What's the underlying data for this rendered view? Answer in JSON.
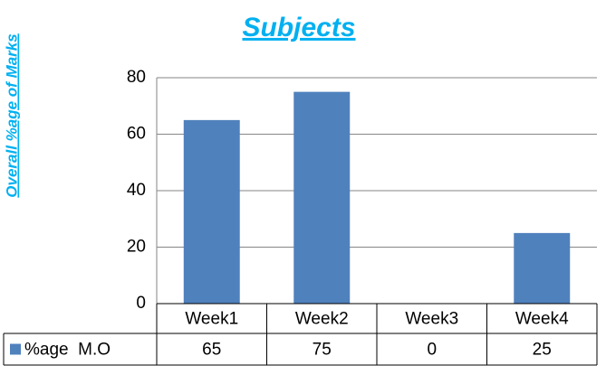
{
  "chart_data": {
    "type": "bar",
    "title": "Subjects",
    "y_label": "Overall %age of Marks",
    "categories": [
      "Week1",
      "Week2",
      "Week3",
      "Week4"
    ],
    "series": [
      {
        "name": "%age  M.O",
        "color": "#4f81bd",
        "values": [
          65,
          75,
          0,
          25
        ]
      }
    ],
    "ylim": [
      0,
      80
    ],
    "yticks": [
      0,
      20,
      40,
      60,
      80
    ],
    "grid": true,
    "data_table": true
  }
}
